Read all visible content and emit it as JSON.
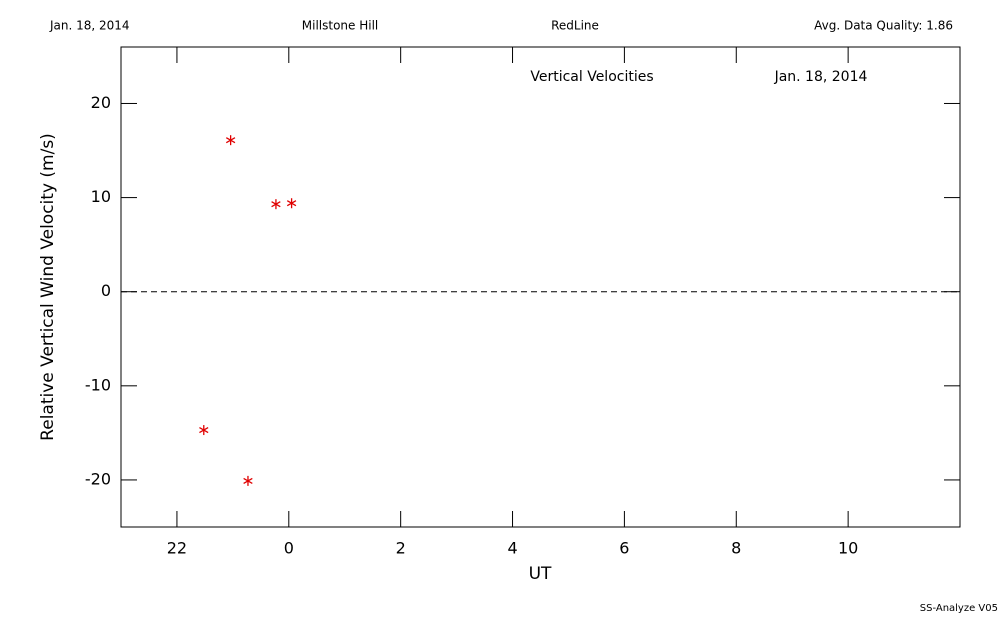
{
  "chart_data": {
    "type": "scatter",
    "header": [
      "Jan. 18, 2014",
      "Millstone Hill",
      "RedLine",
      "Avg. Data Quality: 1.86"
    ],
    "annotations": [
      "Vertical Velocities",
      "Jan. 18, 2014"
    ],
    "xlabel": "UT",
    "ylabel": "Relative Vertical Wind Velocity (m/s)",
    "footer": "SS-Analyze V05",
    "x": [
      -1.04,
      -0.23,
      0.05,
      -1.52,
      -0.73
    ],
    "values": [
      16.1,
      9.3,
      9.4,
      -14.7,
      -20.1
    ],
    "color": "#e00000",
    "xlim": [
      -3,
      12
    ],
    "xticks": [
      {
        "value": -2,
        "label": "22"
      },
      0,
      2,
      4,
      6,
      8,
      10
    ],
    "ylim": [
      -25,
      26
    ],
    "yticks": [
      -20,
      -10,
      0,
      10,
      20
    ],
    "zero_line": true
  }
}
